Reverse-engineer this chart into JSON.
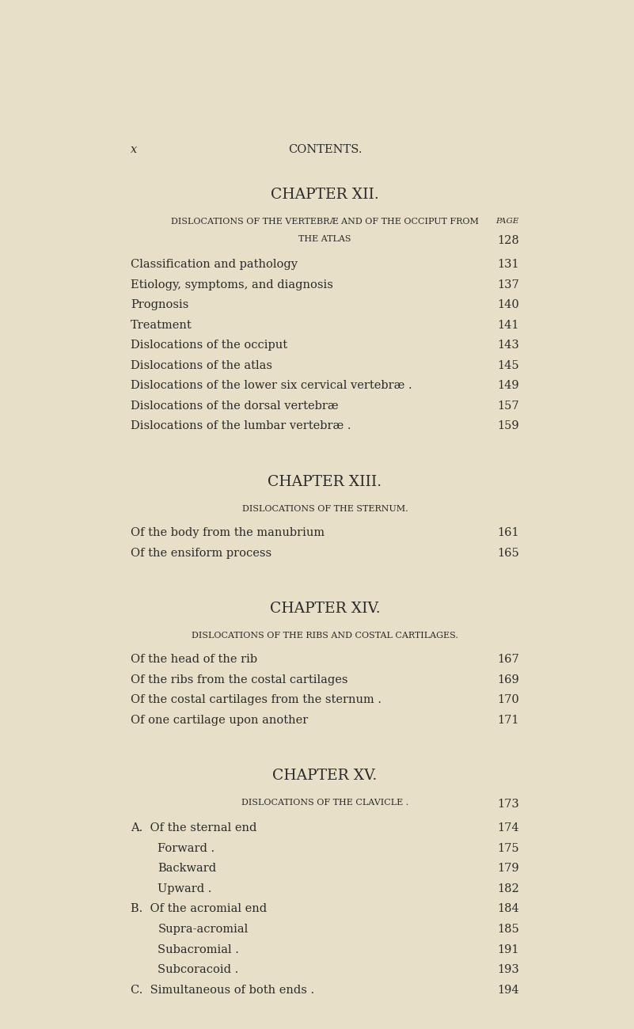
{
  "bg_color": "#e8dfc8",
  "text_color": "#2a2a2a",
  "page_label": "x",
  "header": "CONTENTS.",
  "sections": [
    {
      "chapter_title": "CHAPTER XII.",
      "subtitle_line1": "DISLOCATIONS OF THE VERTEBRÆ AND OF THE OCCIPUT FROM",
      "subtitle_line2": "THE ATLAS",
      "subtitle_page": "128",
      "page_label": "PAGE",
      "entries": [
        {
          "text": "Classification and pathology",
          "page": "131",
          "indent": 0
        },
        {
          "text": "Etiology, symptoms, and diagnosis",
          "page": "137",
          "indent": 0
        },
        {
          "text": "Prognosis",
          "page": "140",
          "indent": 0
        },
        {
          "text": "Treatment",
          "page": "141",
          "indent": 0
        },
        {
          "text": "Dislocations of the occiput",
          "page": "143",
          "indent": 0
        },
        {
          "text": "Dislocations of the atlas",
          "page": "145",
          "indent": 0
        },
        {
          "text": "Dislocations of the lower six cervical vertebræ .",
          "page": "149",
          "indent": 0
        },
        {
          "text": "Dislocations of the dorsal vertebræ",
          "page": "157",
          "indent": 0
        },
        {
          "text": "Dislocations of the lumbar vertebræ .",
          "page": "159",
          "indent": 0
        }
      ]
    },
    {
      "chapter_title": "CHAPTER XIII.",
      "subtitle_line1": "DISLOCATIONS OF THE STERNUM.",
      "subtitle_line2": null,
      "subtitle_page": null,
      "page_label": null,
      "entries": [
        {
          "text": "Of the body from the manubrium",
          "page": "161",
          "indent": 0
        },
        {
          "text": "Of the ensiform process",
          "page": "165",
          "indent": 0
        }
      ]
    },
    {
      "chapter_title": "CHAPTER XIV.",
      "subtitle_line1": "DISLOCATIONS OF THE RIBS AND COSTAL CARTILAGES.",
      "subtitle_line2": null,
      "subtitle_page": null,
      "page_label": null,
      "entries": [
        {
          "text": "Of the head of the rib",
          "page": "167",
          "indent": 0
        },
        {
          "text": "Of the ribs from the costal cartilages",
          "page": "169",
          "indent": 0
        },
        {
          "text": "Of the costal cartilages from the sternum .",
          "page": "170",
          "indent": 0
        },
        {
          "text": "Of one cartilage upon another",
          "page": "171",
          "indent": 0
        }
      ]
    },
    {
      "chapter_title": "CHAPTER XV.",
      "subtitle_line1": "DISLOCATIONS OF THE CLAVICLE .",
      "subtitle_line2": null,
      "subtitle_page": "173",
      "page_label": null,
      "entries": [
        {
          "text": "A.  Of the sternal end",
          "page": "174",
          "indent": 0
        },
        {
          "text": "Forward .",
          "page": "175",
          "indent": 1
        },
        {
          "text": "Backward",
          "page": "179",
          "indent": 1
        },
        {
          "text": "Upward .",
          "page": "182",
          "indent": 1
        },
        {
          "text": "B.  Of the acromial end",
          "page": "184",
          "indent": 0
        },
        {
          "text": "Supra-acromial",
          "page": "185",
          "indent": 1
        },
        {
          "text": "Subacromial .",
          "page": "191",
          "indent": 1
        },
        {
          "text": "Subcoracoid .",
          "page": "193",
          "indent": 1
        },
        {
          "text": "C.  Simultaneous of both ends .",
          "page": "194",
          "indent": 0
        }
      ]
    }
  ]
}
